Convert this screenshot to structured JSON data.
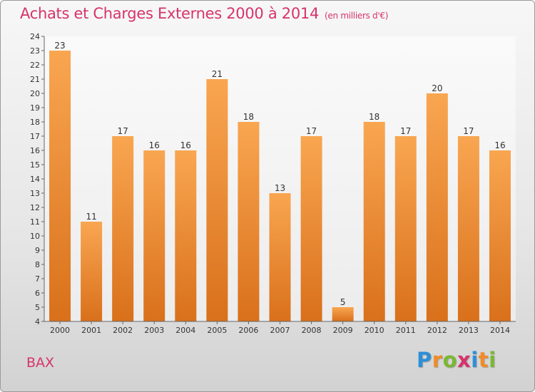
{
  "chart_data": {
    "type": "bar",
    "title": "Achats et Charges Externes 2000 à 2014",
    "subtitle": "(en milliers d'€)",
    "categories": [
      "2000",
      "2001",
      "2002",
      "2003",
      "2004",
      "2005",
      "2006",
      "2007",
      "2008",
      "2009",
      "2010",
      "2011",
      "2012",
      "2013",
      "2014"
    ],
    "values": [
      23,
      11,
      17,
      16,
      16,
      21,
      18,
      13,
      17,
      5,
      18,
      17,
      20,
      17,
      16
    ],
    "xlabel": "",
    "ylabel": "",
    "ylim": [
      4,
      24
    ],
    "yticks": [
      4,
      5,
      6,
      7,
      8,
      9,
      10,
      11,
      12,
      13,
      14,
      15,
      16,
      17,
      18,
      19,
      20,
      21,
      22,
      23,
      24
    ],
    "grid": false,
    "bar_color": "#f08c28"
  },
  "footer": {
    "location": "BAX",
    "brand_letters": [
      "P",
      "r",
      "o",
      "x",
      "i",
      "t",
      "i"
    ],
    "brand_colors": [
      "#2d8fd8",
      "#f08c28",
      "#7ab834",
      "#d6336c",
      "#2d8fd8",
      "#f08c28",
      "#7ab834"
    ]
  }
}
